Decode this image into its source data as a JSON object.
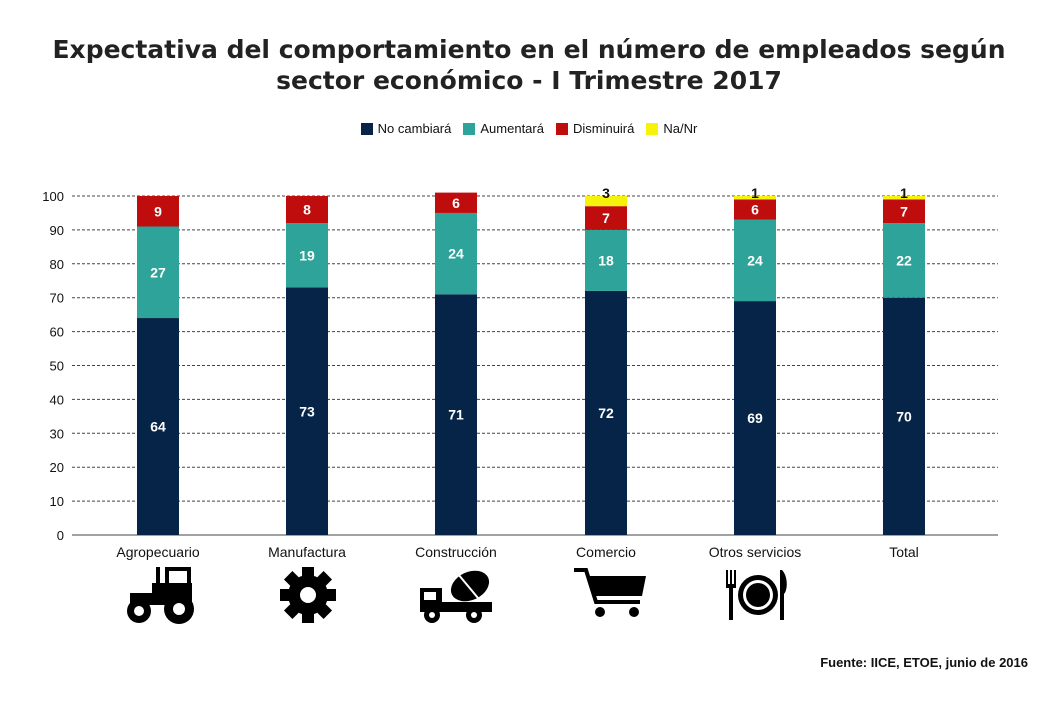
{
  "title_line1": "Expectativa  del comportamiento en el número de empleados según",
  "title_line2": "sector económico - I Trimestre 2017",
  "source": "Fuente: IICE, ETOE, junio de 2016",
  "colors": {
    "No cambiará": "#062447",
    "Aumentará": "#2da39a",
    "Disminuirá": "#bf0d0d",
    "Na/Nr": "#f7f20a"
  },
  "icons": [
    "tractor-icon",
    "gear-icon",
    "cement-truck-icon",
    "shopping-cart-icon",
    "plate-cutlery-icon"
  ],
  "chart_data": {
    "type": "bar",
    "stacked": true,
    "categories": [
      "Agropecuario",
      "Manufactura",
      "Construcción",
      "Comercio",
      "Otros servicios",
      "Total"
    ],
    "series": [
      {
        "name": "No cambiará",
        "values": [
          64,
          73,
          71,
          72,
          69,
          70
        ]
      },
      {
        "name": "Aumentará",
        "values": [
          27,
          19,
          24,
          18,
          24,
          22
        ]
      },
      {
        "name": "Disminuirá",
        "values": [
          9,
          8,
          6,
          7,
          6,
          7
        ]
      },
      {
        "name": "Na/Nr",
        "values": [
          0,
          0,
          0,
          3,
          1,
          1
        ]
      }
    ],
    "ylim": [
      0,
      100
    ],
    "yticks": [
      0,
      10,
      20,
      30,
      40,
      50,
      60,
      70,
      80,
      90,
      100
    ],
    "grid": true,
    "legend": "top-center"
  }
}
